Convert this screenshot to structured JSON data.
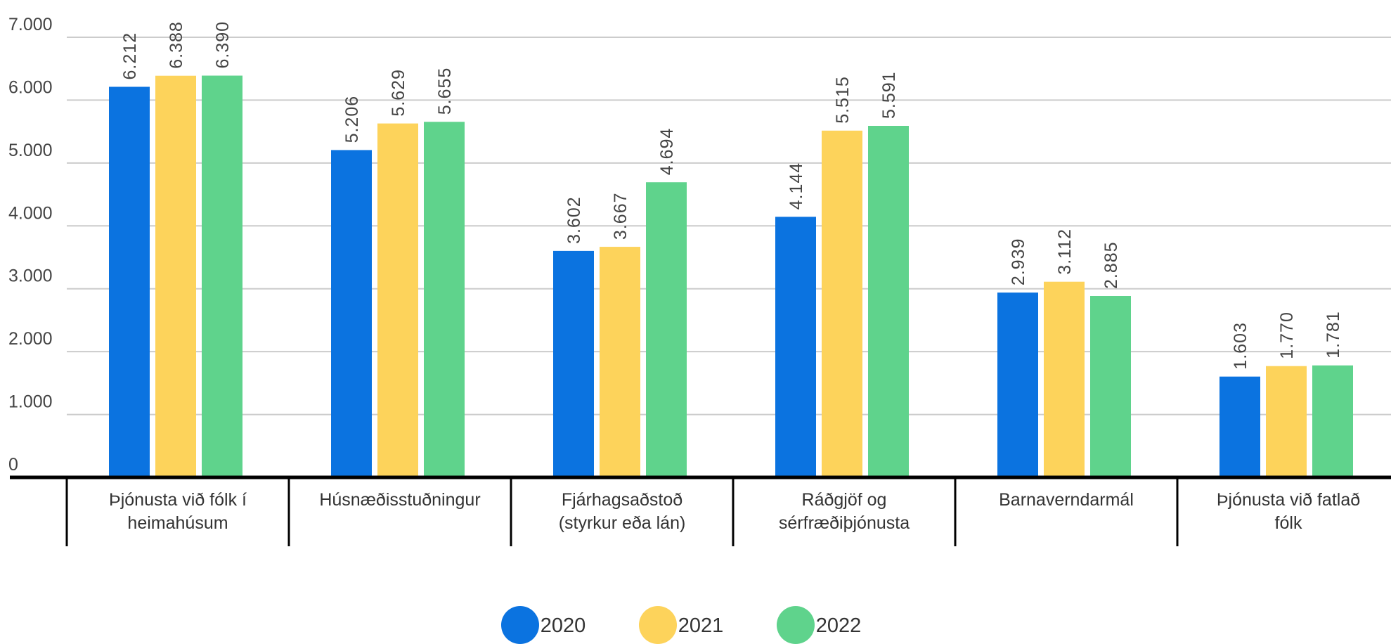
{
  "chart_data": {
    "type": "bar",
    "title": "",
    "xlabel": "",
    "ylabel": "",
    "categories": [
      [
        "Þjónusta við fólk í",
        "heimahúsum"
      ],
      [
        "Húsnæðisstuðningur"
      ],
      [
        "Fjárhagsaðstoð",
        "(styrkur eða lán)"
      ],
      [
        "Ráðgjöf og",
        "sérfræðiþjónusta"
      ],
      [
        "Barnaverndarmál"
      ],
      [
        "Þjónusta við fatlað",
        "fólk"
      ]
    ],
    "series": [
      {
        "name": "2020",
        "color": "#0b73e0",
        "values": [
          6212,
          5206,
          3602,
          4144,
          2939,
          1603
        ],
        "labels": [
          "6.212",
          "5.206",
          "3.602",
          "4.144",
          "2.939",
          "1.603"
        ]
      },
      {
        "name": "2021",
        "color": "#fdd35b",
        "values": [
          6388,
          5629,
          3667,
          5515,
          3112,
          1770
        ],
        "labels": [
          "6.388",
          "5.629",
          "3.667",
          "5.515",
          "3.112",
          "1.770"
        ]
      },
      {
        "name": "2022",
        "color": "#5fd38c",
        "values": [
          6390,
          5655,
          4694,
          5591,
          2885,
          1781
        ],
        "labels": [
          "6.390",
          "5.655",
          "4.694",
          "5.591",
          "2.885",
          "1.781"
        ]
      }
    ],
    "yticks": [
      0,
      1000,
      2000,
      3000,
      4000,
      5000,
      6000,
      7000
    ],
    "ytick_labels": [
      "0",
      "1.000",
      "2.000",
      "3.000",
      "4.000",
      "5.000",
      "6.000",
      "7.000"
    ],
    "ylim": [
      0,
      7000
    ],
    "grid": true,
    "legend_position": "bottom-center",
    "colors": {
      "grid": "#cccccc",
      "axis": "#000000"
    }
  }
}
